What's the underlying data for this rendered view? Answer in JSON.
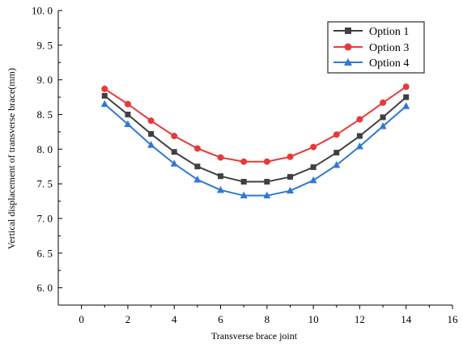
{
  "chart_data": {
    "type": "line",
    "xlabel": "Transverse brace joint",
    "ylabel": "Vertical displacement of transverse brace(mm)",
    "xlim": [
      -1,
      16
    ],
    "ylim": [
      5.75,
      10.0
    ],
    "x_ticks": [
      0,
      2,
      4,
      6,
      8,
      10,
      12,
      14,
      16
    ],
    "x_tick_labels": [
      "0",
      "2",
      "4",
      "6",
      "8",
      "10",
      "12",
      "14",
      "16"
    ],
    "y_ticks": [
      6.0,
      6.5,
      7.0,
      7.5,
      8.0,
      8.5,
      9.0,
      9.5,
      10.0
    ],
    "y_tick_labels": [
      "6. 0",
      "6. 5",
      "7. 0",
      "7. 5",
      "8. 0",
      "8. 5",
      "9. 0",
      "9. 5",
      "10. 0"
    ],
    "grid": false,
    "legend_position": "top-right",
    "x": [
      1,
      2,
      3,
      4,
      5,
      6,
      7,
      8,
      9,
      10,
      11,
      12,
      13,
      14
    ],
    "series": [
      {
        "name": "Option 1",
        "color": "#404040",
        "marker": "square",
        "values": [
          8.77,
          8.5,
          8.22,
          7.96,
          7.75,
          7.61,
          7.53,
          7.53,
          7.6,
          7.74,
          7.95,
          8.19,
          8.46,
          8.75
        ]
      },
      {
        "name": "Option 3",
        "color": "#e8393a",
        "marker": "circle",
        "values": [
          8.87,
          8.65,
          8.41,
          8.19,
          8.01,
          7.88,
          7.82,
          7.82,
          7.89,
          8.03,
          8.21,
          8.43,
          8.67,
          8.9
        ]
      },
      {
        "name": "Option 4",
        "color": "#2f78d4",
        "marker": "triangle",
        "values": [
          8.65,
          8.36,
          8.06,
          7.79,
          7.56,
          7.41,
          7.33,
          7.33,
          7.4,
          7.55,
          7.77,
          8.04,
          8.33,
          8.62
        ]
      }
    ]
  }
}
